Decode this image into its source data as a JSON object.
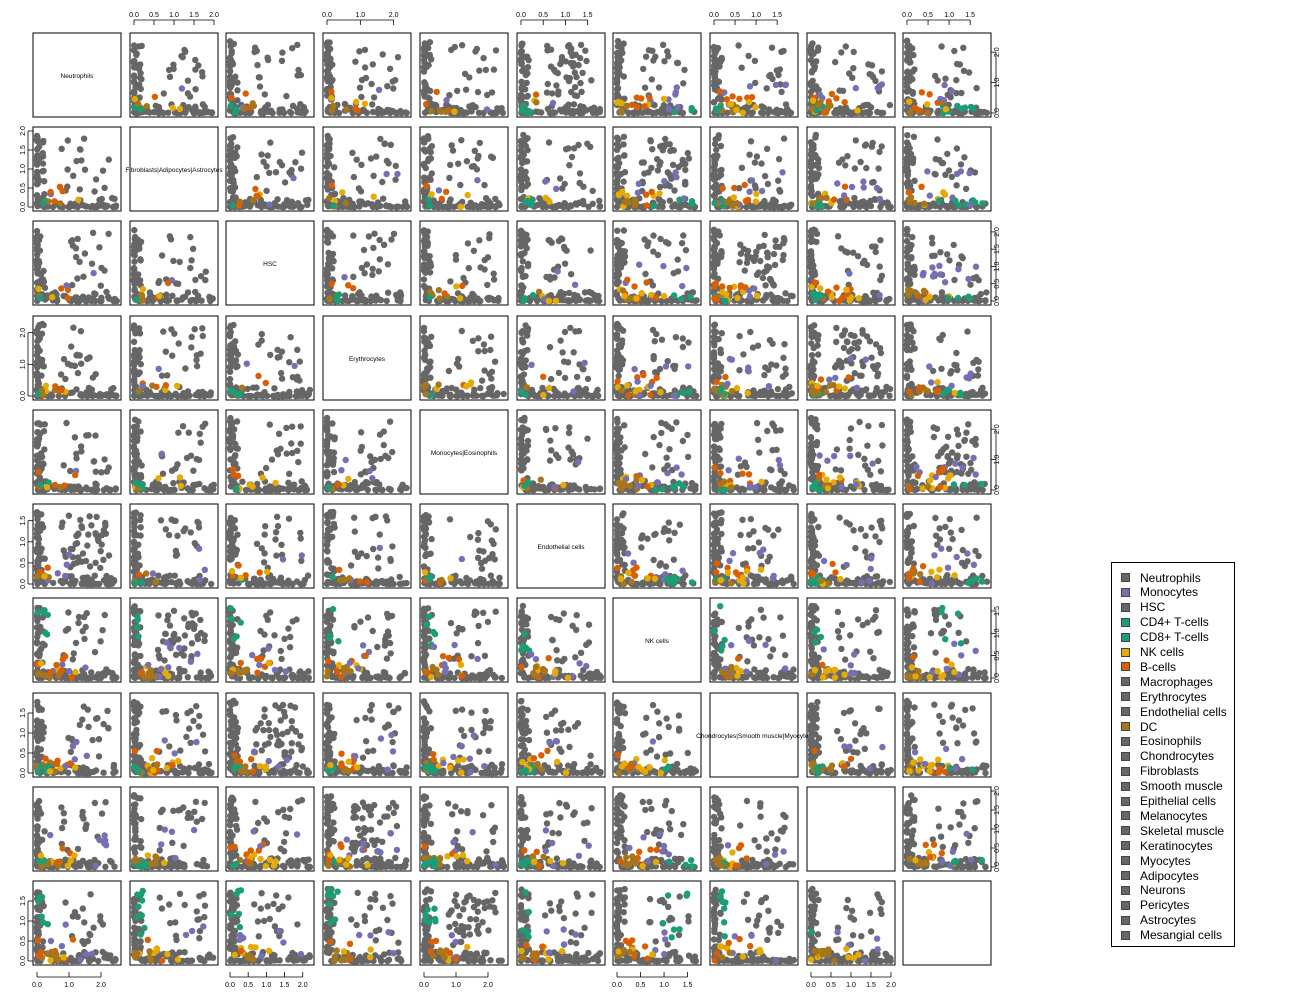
{
  "colors": {
    "gray": "#666666",
    "purple": "#7570B3",
    "green": "#1B9E77",
    "gold": "#E6AB02",
    "orange": "#D95F02",
    "brown": "#A6761D"
  },
  "chart_data": {
    "type": "scatter",
    "title": "",
    "panel_grid": "10x10 pairs matrix",
    "diagonal_labels": [
      "Neutrophils",
      "Fibroblasts|Adipocytes|Astrocytes",
      "HSC",
      "Erythrocytes",
      "Monocytes|Eosinophils",
      "Endothelial cells",
      "NK cells",
      "Chondrocytes|Smooth muscle|Myocytes",
      "",
      ""
    ],
    "variable_ranges": [
      [
        0,
        2.5
      ],
      [
        0,
        2.0
      ],
      [
        0,
        2.2
      ],
      [
        0,
        2.4
      ],
      [
        0,
        2.5
      ],
      [
        0,
        1.8
      ],
      [
        0,
        1.7
      ],
      [
        0,
        1.9
      ],
      [
        0,
        2.0
      ],
      [
        0,
        1.9
      ]
    ],
    "ticks": [
      [
        "0.0",
        "1.0",
        "2.0"
      ],
      [
        "0.0",
        "0.5",
        "1.0",
        "1.5",
        "2.0"
      ],
      [
        "0.0",
        "0.5",
        "1.0",
        "1.5",
        "2.0"
      ],
      [
        "0.0",
        "1.0",
        "2.0"
      ],
      [
        "0.0",
        "1.0",
        "2.0"
      ],
      [
        "0.0",
        "0.5",
        "1.0",
        "1.5"
      ],
      [
        "0.0",
        "0.5",
        "1.0",
        "1.5"
      ],
      [
        "0.0",
        "0.5",
        "1.0",
        "1.5"
      ],
      [
        "0.0",
        "0.5",
        "1.0",
        "1.5",
        "2.0"
      ],
      [
        "0.0",
        "0.5",
        "1.0",
        "1.5"
      ]
    ],
    "legend_position": "right",
    "legend": [
      {
        "name": "Neutrophils",
        "color": "#666666"
      },
      {
        "name": "Monocytes",
        "color": "#7570B3"
      },
      {
        "name": "HSC",
        "color": "#666666"
      },
      {
        "name": "CD4+ T-cells",
        "color": "#1B9E77"
      },
      {
        "name": "CD8+ T-cells",
        "color": "#1B9E77"
      },
      {
        "name": "NK cells",
        "color": "#E6AB02"
      },
      {
        "name": "B-cells",
        "color": "#D95F02"
      },
      {
        "name": "Macrophages",
        "color": "#666666"
      },
      {
        "name": "Erythrocytes",
        "color": "#666666"
      },
      {
        "name": "Endothelial cells",
        "color": "#666666"
      },
      {
        "name": "DC",
        "color": "#A6761D"
      },
      {
        "name": "Eosinophils",
        "color": "#666666"
      },
      {
        "name": "Chondrocytes",
        "color": "#666666"
      },
      {
        "name": "Fibroblasts",
        "color": "#666666"
      },
      {
        "name": "Smooth muscle",
        "color": "#666666"
      },
      {
        "name": "Epithelial cells",
        "color": "#666666"
      },
      {
        "name": "Melanocytes",
        "color": "#666666"
      },
      {
        "name": "Skeletal muscle",
        "color": "#666666"
      },
      {
        "name": "Keratinocytes",
        "color": "#666666"
      },
      {
        "name": "Myocytes",
        "color": "#666666"
      },
      {
        "name": "Adipocytes",
        "color": "#666666"
      },
      {
        "name": "Neurons",
        "color": "#666666"
      },
      {
        "name": "Pericytes",
        "color": "#666666"
      },
      {
        "name": "Astrocytes",
        "color": "#666666"
      },
      {
        "name": "Mesangial cells",
        "color": "#666666"
      }
    ]
  }
}
